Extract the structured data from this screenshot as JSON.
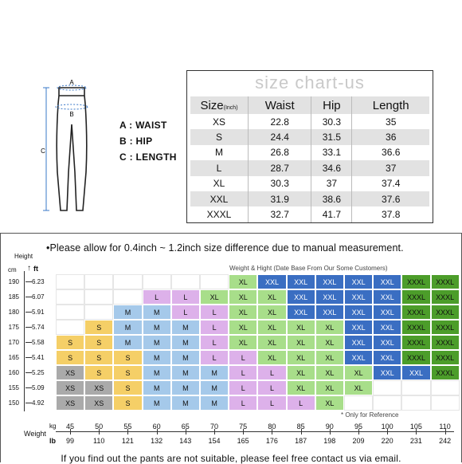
{
  "legend": {
    "a": "A : WAIST",
    "b": "B : HIP",
    "c": "C : LENGTH",
    "diagram_a": "A",
    "diagram_b": "B",
    "diagram_c": "C"
  },
  "size_chart": {
    "title": "size chart-us",
    "headers": [
      "Size",
      "Waist",
      "Hip",
      "Length"
    ],
    "header_unit": "(Inch)",
    "rows": [
      [
        "XS",
        "22.8",
        "30.3",
        "35"
      ],
      [
        "S",
        "24.4",
        "31.5",
        "36"
      ],
      [
        "M",
        "26.8",
        "33.1",
        "36.6"
      ],
      [
        "L",
        "28.7",
        "34.6",
        "37"
      ],
      [
        "XL",
        "30.3",
        "37",
        "37.4"
      ],
      [
        "XXL",
        "31.9",
        "38.6",
        "37.6"
      ],
      [
        "XXXL",
        "32.7",
        "41.7",
        "37.8"
      ]
    ]
  },
  "note": "•Please allow for 0.4inch ~ 1.2inch size difference due to manual measurement.",
  "weight_chart": {
    "caption": "Weight & Hight (Date Base From Our Some Customers)",
    "reference": "* Only for Reference",
    "height_label": "Height",
    "cm_label": "cm",
    "ft_label": "ft",
    "kg_label": "kg",
    "weight_label": "Weight",
    "lb_label": "lb",
    "heights_cm": [
      "190",
      "185",
      "180",
      "175",
      "170",
      "165",
      "160",
      "155",
      "150"
    ],
    "heights_ft": [
      "6.23",
      "6.07",
      "5.91",
      "5.74",
      "5.58",
      "5.41",
      "5.25",
      "5.09",
      "4.92"
    ],
    "weights_kg": [
      "45",
      "50",
      "55",
      "60",
      "65",
      "70",
      "75",
      "80",
      "85",
      "90",
      "95",
      "100",
      "105",
      "110"
    ],
    "weights_lb": [
      "99",
      "110",
      "121",
      "132",
      "143",
      "154",
      "165",
      "176",
      "187",
      "198",
      "209",
      "220",
      "231",
      "242"
    ],
    "grid": [
      [
        "",
        "",
        "",
        "",
        "",
        "",
        "XL",
        "XXL",
        "XXL",
        "XXL",
        "XXL",
        "XXL",
        "XXXL",
        "XXXL"
      ],
      [
        "",
        "",
        "",
        "L",
        "L",
        "XL",
        "XL",
        "XL",
        "XXL",
        "XXL",
        "XXL",
        "XXL",
        "XXXL",
        "XXXL"
      ],
      [
        "",
        "",
        "M",
        "M",
        "L",
        "L",
        "XL",
        "XL",
        "XXL",
        "XXL",
        "XXL",
        "XXL",
        "XXXL",
        "XXXL"
      ],
      [
        "",
        "S",
        "M",
        "M",
        "M",
        "L",
        "XL",
        "XL",
        "XL",
        "XL",
        "XXL",
        "XXL",
        "XXXL",
        "XXXL"
      ],
      [
        "S",
        "S",
        "M",
        "M",
        "M",
        "L",
        "XL",
        "XL",
        "XL",
        "XL",
        "XXL",
        "XXL",
        "XXXL",
        "XXXL"
      ],
      [
        "S",
        "S",
        "S",
        "M",
        "M",
        "L",
        "L",
        "XL",
        "XL",
        "XL",
        "XXL",
        "XXL",
        "XXXL",
        "XXXL"
      ],
      [
        "XS",
        "S",
        "S",
        "M",
        "M",
        "M",
        "L",
        "L",
        "XL",
        "XL",
        "XL",
        "XXL",
        "XXL",
        "XXXL"
      ],
      [
        "XS",
        "XS",
        "S",
        "M",
        "M",
        "M",
        "L",
        "L",
        "XL",
        "XL",
        "XL",
        "",
        "",
        ""
      ],
      [
        "XS",
        "XS",
        "S",
        "M",
        "M",
        "M",
        "L",
        "L",
        "L",
        "XL",
        "",
        "",
        "",
        ""
      ]
    ],
    "colors": {
      "XS": "#aaaaaa",
      "S": "#f5cf67",
      "M": "#a5c9ea",
      "L": "#ddb1ea",
      "XL": "#a8de8a",
      "XXL": "#3a6ec2",
      "XXXL": "#4c9d2a"
    }
  },
  "footer": "If you find out the pants are not suitable, please feel free contact us via email."
}
